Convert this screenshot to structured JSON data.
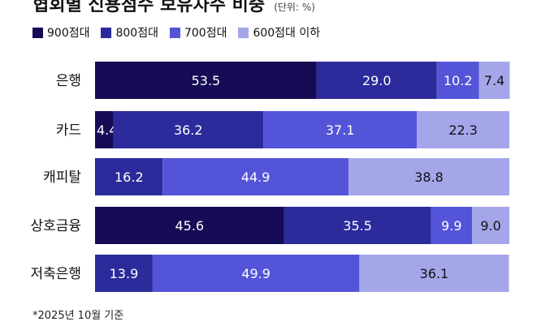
{
  "title": "협회별 신용점수 보유차주 비중",
  "unit_note": "(단위: %)",
  "footnote": "*2025년 10월 기준",
  "colors": {
    "s900": "#150c55",
    "s800": "#2b2b9b",
    "s700": "#5454d8",
    "s600": "#a5a5ea",
    "label_dark": "#ffffff",
    "label_light": "#111111"
  },
  "chart_data": {
    "type": "bar",
    "orientation": "horizontal",
    "stacked": true,
    "categories": [
      "은행",
      "카드",
      "캐피탈",
      "상호금융",
      "저축은행"
    ],
    "series": [
      {
        "name": "900점대",
        "values": [
          53.5,
          4.4,
          0.1,
          45.6,
          0
        ]
      },
      {
        "name": "800점대",
        "values": [
          29.0,
          36.2,
          16.2,
          35.5,
          13.9
        ]
      },
      {
        "name": "700점대",
        "values": [
          10.2,
          37.1,
          44.9,
          9.9,
          49.9
        ]
      },
      {
        "name": "600점대 이하",
        "values": [
          7.4,
          22.3,
          38.8,
          9.0,
          36.1
        ]
      }
    ],
    "xlim": [
      0,
      100
    ],
    "legend_position": "top-left",
    "grid": false
  }
}
